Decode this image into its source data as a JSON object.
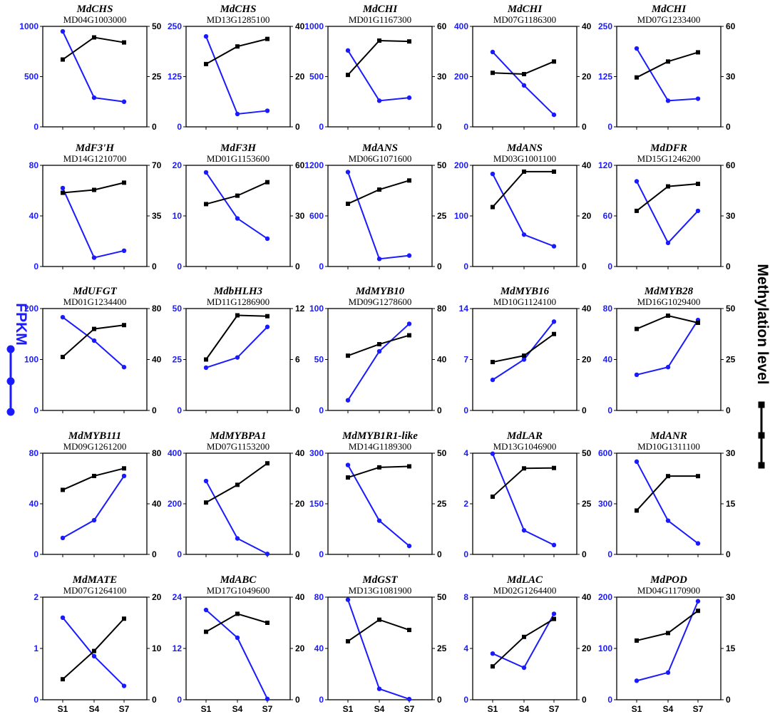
{
  "colors": {
    "fpkm": "#1a1aff",
    "methylation": "#000000"
  },
  "labels": {
    "left_axis": "FPKM",
    "right_axis": "Methylation level",
    "x_categories": [
      "S1",
      "S4",
      "S7"
    ]
  },
  "chart_data": [
    {
      "type": "line",
      "title": "MdCHS",
      "subtitle": "MD04G1003000",
      "left_ticks": [
        "0",
        "500",
        "1000"
      ],
      "left_ylim": [
        0,
        1000
      ],
      "right_ticks": [
        "0",
        "25",
        "50"
      ],
      "right_ylim": [
        0,
        50
      ],
      "series": [
        {
          "name": "FPKM",
          "axis": "left",
          "values": [
            950,
            290,
            250
          ]
        },
        {
          "name": "Methylation",
          "axis": "right",
          "values": [
            33.5,
            44.5,
            42
          ]
        }
      ]
    },
    {
      "type": "line",
      "title": "MdCHS",
      "subtitle": "MD13G1285100",
      "left_ticks": [
        "0",
        "125",
        "250"
      ],
      "left_ylim": [
        0,
        250
      ],
      "right_ticks": [
        "0",
        "20",
        "40"
      ],
      "right_ylim": [
        0,
        40
      ],
      "series": [
        {
          "name": "FPKM",
          "axis": "left",
          "values": [
            225,
            32,
            40
          ]
        },
        {
          "name": "Methylation",
          "axis": "right",
          "values": [
            25,
            32,
            35
          ]
        }
      ]
    },
    {
      "type": "line",
      "title": "MdCHI",
      "subtitle": "MD01G1167300",
      "left_ticks": [
        "0",
        "500",
        "1000"
      ],
      "left_ylim": [
        0,
        1000
      ],
      "right_ticks": [
        "0",
        "30",
        "60"
      ],
      "right_ylim": [
        0,
        60
      ],
      "series": [
        {
          "name": "FPKM",
          "axis": "left",
          "values": [
            760,
            260,
            290
          ]
        },
        {
          "name": "Methylation",
          "axis": "right",
          "values": [
            31,
            51.5,
            51
          ]
        }
      ]
    },
    {
      "type": "line",
      "title": "MdCHI",
      "subtitle": "MD07G1186300",
      "left_ticks": [
        "0",
        "200",
        "400"
      ],
      "left_ylim": [
        0,
        400
      ],
      "right_ticks": [
        "0",
        "20",
        "40"
      ],
      "right_ylim": [
        0,
        40
      ],
      "series": [
        {
          "name": "FPKM",
          "axis": "left",
          "values": [
            298,
            165,
            48
          ]
        },
        {
          "name": "Methylation",
          "axis": "right",
          "values": [
            21.5,
            21,
            26
          ]
        }
      ]
    },
    {
      "type": "line",
      "title": "MdCHI",
      "subtitle": "MD07G1233400",
      "left_ticks": [
        "0",
        "125",
        "250"
      ],
      "left_ylim": [
        0,
        250
      ],
      "right_ticks": [
        "0",
        "30",
        "60"
      ],
      "right_ylim": [
        0,
        60
      ],
      "series": [
        {
          "name": "FPKM",
          "axis": "left",
          "values": [
            195,
            65,
            70
          ]
        },
        {
          "name": "Methylation",
          "axis": "right",
          "values": [
            29.5,
            39,
            44.5
          ]
        }
      ]
    },
    {
      "type": "line",
      "title": "MdF3'H",
      "subtitle": "MD14G1210700",
      "left_ticks": [
        "0",
        "40",
        "80"
      ],
      "left_ylim": [
        0,
        80
      ],
      "right_ticks": [
        "0",
        "35",
        "70"
      ],
      "right_ylim": [
        0,
        70
      ],
      "series": [
        {
          "name": "FPKM",
          "axis": "left",
          "values": [
            62,
            7,
            12.5
          ]
        },
        {
          "name": "Methylation",
          "axis": "right",
          "values": [
            51,
            53,
            58
          ]
        }
      ]
    },
    {
      "type": "line",
      "title": "MdF3H",
      "subtitle": "MD01G1153600",
      "left_ticks": [
        "0",
        "10",
        "20"
      ],
      "left_ylim": [
        0,
        20
      ],
      "right_ticks": [
        "0",
        "30",
        "60"
      ],
      "right_ylim": [
        0,
        60
      ],
      "series": [
        {
          "name": "FPKM",
          "axis": "left",
          "values": [
            18.6,
            9.5,
            5.5
          ]
        },
        {
          "name": "Methylation",
          "axis": "right",
          "values": [
            37,
            42,
            50
          ]
        }
      ]
    },
    {
      "type": "line",
      "title": "MdANS",
      "subtitle": "MD06G1071600",
      "left_ticks": [
        "0",
        "600",
        "1200"
      ],
      "left_ylim": [
        0,
        1200
      ],
      "right_ticks": [
        "0",
        "25",
        "50"
      ],
      "right_ylim": [
        0,
        50
      ],
      "series": [
        {
          "name": "FPKM",
          "axis": "left",
          "values": [
            1120,
            90,
            130
          ]
        },
        {
          "name": "Methylation",
          "axis": "right",
          "values": [
            31,
            38,
            42.5
          ]
        }
      ]
    },
    {
      "type": "line",
      "title": "MdANS",
      "subtitle": "MD03G1001100",
      "left_ticks": [
        "0",
        "100",
        "200"
      ],
      "left_ylim": [
        0,
        200
      ],
      "right_ticks": [
        "0",
        "20",
        "40"
      ],
      "right_ylim": [
        0,
        40
      ],
      "series": [
        {
          "name": "FPKM",
          "axis": "left",
          "values": [
            183,
            63,
            40
          ]
        },
        {
          "name": "Methylation",
          "axis": "right",
          "values": [
            23.5,
            37.5,
            37.5
          ]
        }
      ]
    },
    {
      "type": "line",
      "title": "MdDFR",
      "subtitle": "MD15G1246200",
      "left_ticks": [
        "0",
        "60",
        "120"
      ],
      "left_ylim": [
        0,
        120
      ],
      "right_ticks": [
        "0",
        "30",
        "60"
      ],
      "right_ylim": [
        0,
        60
      ],
      "series": [
        {
          "name": "FPKM",
          "axis": "left",
          "values": [
            101,
            28,
            66
          ]
        },
        {
          "name": "Methylation",
          "axis": "right",
          "values": [
            33,
            47.5,
            49
          ]
        }
      ]
    },
    {
      "type": "line",
      "title": "MdUFGT",
      "subtitle": "MD01G1234400",
      "left_ticks": [
        "0",
        "100",
        "200"
      ],
      "left_ylim": [
        0,
        200
      ],
      "right_ticks": [
        "0",
        "40",
        "80"
      ],
      "right_ylim": [
        0,
        80
      ],
      "series": [
        {
          "name": "FPKM",
          "axis": "left",
          "values": [
            183,
            137,
            85
          ]
        },
        {
          "name": "Methylation",
          "axis": "right",
          "values": [
            42,
            64,
            67
          ]
        }
      ]
    },
    {
      "type": "line",
      "title": "MdbHLH3",
      "subtitle": "MD11G1286900",
      "left_ticks": [
        "0",
        "25",
        "50"
      ],
      "left_ylim": [
        0,
        50
      ],
      "right_ticks": [
        "0",
        "6",
        "12"
      ],
      "right_ylim": [
        0,
        12
      ],
      "series": [
        {
          "name": "FPKM",
          "axis": "left",
          "values": [
            21,
            26,
            41
          ]
        },
        {
          "name": "Methylation",
          "axis": "right",
          "values": [
            6,
            11.2,
            11.1
          ]
        }
      ]
    },
    {
      "type": "line",
      "title": "MdMYB10",
      "subtitle": "MD09G1278600",
      "left_ticks": [
        "0",
        "50",
        "100"
      ],
      "left_ylim": [
        0,
        100
      ],
      "right_ticks": [
        "0",
        "40",
        "80"
      ],
      "right_ylim": [
        0,
        80
      ],
      "series": [
        {
          "name": "FPKM",
          "axis": "left",
          "values": [
            10,
            58,
            85
          ]
        },
        {
          "name": "Methylation",
          "axis": "right",
          "values": [
            43,
            52,
            59
          ]
        }
      ]
    },
    {
      "type": "line",
      "title": "MdMYB16",
      "subtitle": "MD10G1124100",
      "left_ticks": [
        "0",
        "7",
        "14"
      ],
      "left_ylim": [
        0,
        14
      ],
      "right_ticks": [
        "0",
        "20",
        "40"
      ],
      "right_ylim": [
        0,
        40
      ],
      "series": [
        {
          "name": "FPKM",
          "axis": "left",
          "values": [
            4.2,
            7,
            12.2
          ]
        },
        {
          "name": "Methylation",
          "axis": "right",
          "values": [
            19,
            21.5,
            30
          ]
        }
      ]
    },
    {
      "type": "line",
      "title": "MdMYB28",
      "subtitle": "MD16G1029400",
      "left_ticks": [
        "0",
        "40",
        "80"
      ],
      "left_ylim": [
        0,
        80
      ],
      "right_ticks": [
        "0",
        "25",
        "50"
      ],
      "right_ylim": [
        0,
        50
      ],
      "series": [
        {
          "name": "FPKM",
          "axis": "left",
          "values": [
            28,
            34,
            71
          ]
        },
        {
          "name": "Methylation",
          "axis": "right",
          "values": [
            40,
            46.5,
            43
          ]
        }
      ]
    },
    {
      "type": "line",
      "title": "MdMYB111",
      "subtitle": "MD09G1261200",
      "left_ticks": [
        "0",
        "40",
        "80"
      ],
      "left_ylim": [
        0,
        80
      ],
      "right_ticks": [
        "0",
        "40",
        "80"
      ],
      "right_ylim": [
        0,
        80
      ],
      "series": [
        {
          "name": "FPKM",
          "axis": "left",
          "values": [
            13,
            27,
            62
          ]
        },
        {
          "name": "Methylation",
          "axis": "right",
          "values": [
            51,
            62,
            68
          ]
        }
      ]
    },
    {
      "type": "line",
      "title": "MdMYBPA1",
      "subtitle": "MD07G1153200",
      "left_ticks": [
        "0",
        "200",
        "400"
      ],
      "left_ylim": [
        0,
        400
      ],
      "right_ticks": [
        "0",
        "20",
        "40"
      ],
      "right_ylim": [
        0,
        40
      ],
      "series": [
        {
          "name": "FPKM",
          "axis": "left",
          "values": [
            290,
            63,
            2
          ]
        },
        {
          "name": "Methylation",
          "axis": "right",
          "values": [
            20.5,
            27.5,
            36
          ]
        }
      ]
    },
    {
      "type": "line",
      "title": "MdMYB1R1-like",
      "subtitle": "MD14G1189300",
      "left_ticks": [
        "0",
        "150",
        "300"
      ],
      "left_ylim": [
        0,
        300
      ],
      "right_ticks": [
        "0",
        "25",
        "50"
      ],
      "right_ylim": [
        0,
        50
      ],
      "series": [
        {
          "name": "FPKM",
          "axis": "left",
          "values": [
            265,
            100,
            25
          ]
        },
        {
          "name": "Methylation",
          "axis": "right",
          "values": [
            38,
            43,
            43.5
          ]
        }
      ]
    },
    {
      "type": "line",
      "title": "MdLAR",
      "subtitle": "MD13G1046900",
      "left_ticks": [
        "0",
        "2",
        "4"
      ],
      "left_ylim": [
        0,
        4
      ],
      "right_ticks": [
        "0",
        "25",
        "50"
      ],
      "right_ylim": [
        0,
        50
      ],
      "series": [
        {
          "name": "FPKM",
          "axis": "left",
          "values": [
            3.98,
            0.95,
            0.37
          ]
        },
        {
          "name": "Methylation",
          "axis": "right",
          "values": [
            28.5,
            42.5,
            42.7
          ]
        }
      ]
    },
    {
      "type": "line",
      "title": "MdANR",
      "subtitle": "MD10G1311100",
      "left_ticks": [
        "0",
        "300",
        "600"
      ],
      "left_ylim": [
        0,
        600
      ],
      "right_ticks": [
        "0",
        "15",
        "30"
      ],
      "right_ylim": [
        0,
        30
      ],
      "series": [
        {
          "name": "FPKM",
          "axis": "left",
          "values": [
            550,
            200,
            65
          ]
        },
        {
          "name": "Methylation",
          "axis": "right",
          "values": [
            13,
            23.2,
            23.2
          ]
        }
      ]
    },
    {
      "type": "line",
      "title": "MdMATE",
      "subtitle": "MD07G1264100",
      "left_ticks": [
        "0",
        "1",
        "2"
      ],
      "left_ylim": [
        0,
        2
      ],
      "right_ticks": [
        "0",
        "10",
        "20"
      ],
      "right_ylim": [
        0,
        20
      ],
      "series": [
        {
          "name": "FPKM",
          "axis": "left",
          "values": [
            1.6,
            0.85,
            0.27
          ]
        },
        {
          "name": "Methylation",
          "axis": "right",
          "values": [
            4,
            9.5,
            15.8
          ]
        }
      ]
    },
    {
      "type": "line",
      "title": "MdABC",
      "subtitle": "MD17G1049600",
      "left_ticks": [
        "0",
        "12",
        "24"
      ],
      "left_ylim": [
        0,
        24
      ],
      "right_ticks": [
        "0",
        "20",
        "40"
      ],
      "right_ylim": [
        0,
        40
      ],
      "series": [
        {
          "name": "FPKM",
          "axis": "left",
          "values": [
            21,
            14.5,
            0.2
          ]
        },
        {
          "name": "Methylation",
          "axis": "right",
          "values": [
            26.5,
            33.5,
            30
          ]
        }
      ]
    },
    {
      "type": "line",
      "title": "MdGST",
      "subtitle": "MD13G1081900",
      "left_ticks": [
        "0",
        "40",
        "80"
      ],
      "left_ylim": [
        0,
        80
      ],
      "right_ticks": [
        "0",
        "25",
        "50"
      ],
      "right_ylim": [
        0,
        50
      ],
      "series": [
        {
          "name": "FPKM",
          "axis": "left",
          "values": [
            78,
            8.5,
            0.5
          ]
        },
        {
          "name": "Methylation",
          "axis": "right",
          "values": [
            28.5,
            39,
            34
          ]
        }
      ]
    },
    {
      "type": "line",
      "title": "MdLAC",
      "subtitle": "MD02G1264400",
      "left_ticks": [
        "0",
        "4",
        "8"
      ],
      "left_ylim": [
        0,
        8
      ],
      "right_ticks": [
        "0",
        "20",
        "40"
      ],
      "right_ylim": [
        0,
        40
      ],
      "series": [
        {
          "name": "FPKM",
          "axis": "left",
          "values": [
            3.6,
            2.5,
            6.7
          ]
        },
        {
          "name": "Methylation",
          "axis": "right",
          "values": [
            13,
            24.5,
            31.5
          ]
        }
      ]
    },
    {
      "type": "line",
      "title": "MdPOD",
      "subtitle": "MD04G1170900",
      "left_ticks": [
        "0",
        "100",
        "200"
      ],
      "left_ylim": [
        0,
        200
      ],
      "right_ticks": [
        "0",
        "15",
        "30"
      ],
      "right_ylim": [
        0,
        30
      ],
      "series": [
        {
          "name": "FPKM",
          "axis": "left",
          "values": [
            37,
            53,
            192
          ]
        },
        {
          "name": "Methylation",
          "axis": "right",
          "values": [
            17.3,
            19.5,
            26
          ]
        }
      ]
    }
  ]
}
